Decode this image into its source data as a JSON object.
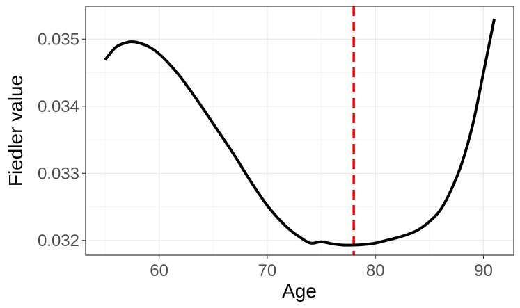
{
  "chart_data": {
    "type": "line",
    "title": "",
    "xlabel": "Age",
    "ylabel": "Fiedler value",
    "xlim": [
      53.2,
      92.8
    ],
    "ylim": [
      0.03178,
      0.03549
    ],
    "x_ticks": [
      60,
      70,
      80,
      90
    ],
    "x_tick_labels": [
      "60",
      "70",
      "80",
      "90"
    ],
    "y_ticks": [
      0.032,
      0.033,
      0.034,
      0.035
    ],
    "y_tick_labels": [
      "0.032",
      "0.033",
      "0.034",
      "0.035"
    ],
    "grid": true,
    "legend": "none",
    "series": [
      {
        "color": "#000000",
        "x": [
          55,
          56,
          57,
          57.5,
          58,
          59,
          60,
          61,
          62,
          63,
          64,
          65,
          66,
          67,
          68,
          69,
          70,
          71,
          72,
          73,
          74,
          75,
          76,
          77,
          78,
          79,
          80,
          81,
          82,
          83,
          84,
          85,
          86,
          87,
          88,
          89,
          90,
          91
        ],
        "y": [
          0.03469,
          0.03488,
          0.03495,
          0.03496,
          0.03495,
          0.03489,
          0.03478,
          0.03462,
          0.03443,
          0.03421,
          0.03398,
          0.03374,
          0.0335,
          0.03326,
          0.033,
          0.03275,
          0.03252,
          0.03233,
          0.03217,
          0.03205,
          0.03196,
          0.03198,
          0.03195,
          0.03193,
          0.03193,
          0.03194,
          0.03196,
          0.032,
          0.03204,
          0.03209,
          0.03216,
          0.03228,
          0.03245,
          0.03275,
          0.03315,
          0.03372,
          0.0345,
          0.0353
        ]
      }
    ],
    "reference_line": {
      "axis": "x",
      "value": 78,
      "style": "dashed",
      "color": "#ff0000"
    }
  }
}
